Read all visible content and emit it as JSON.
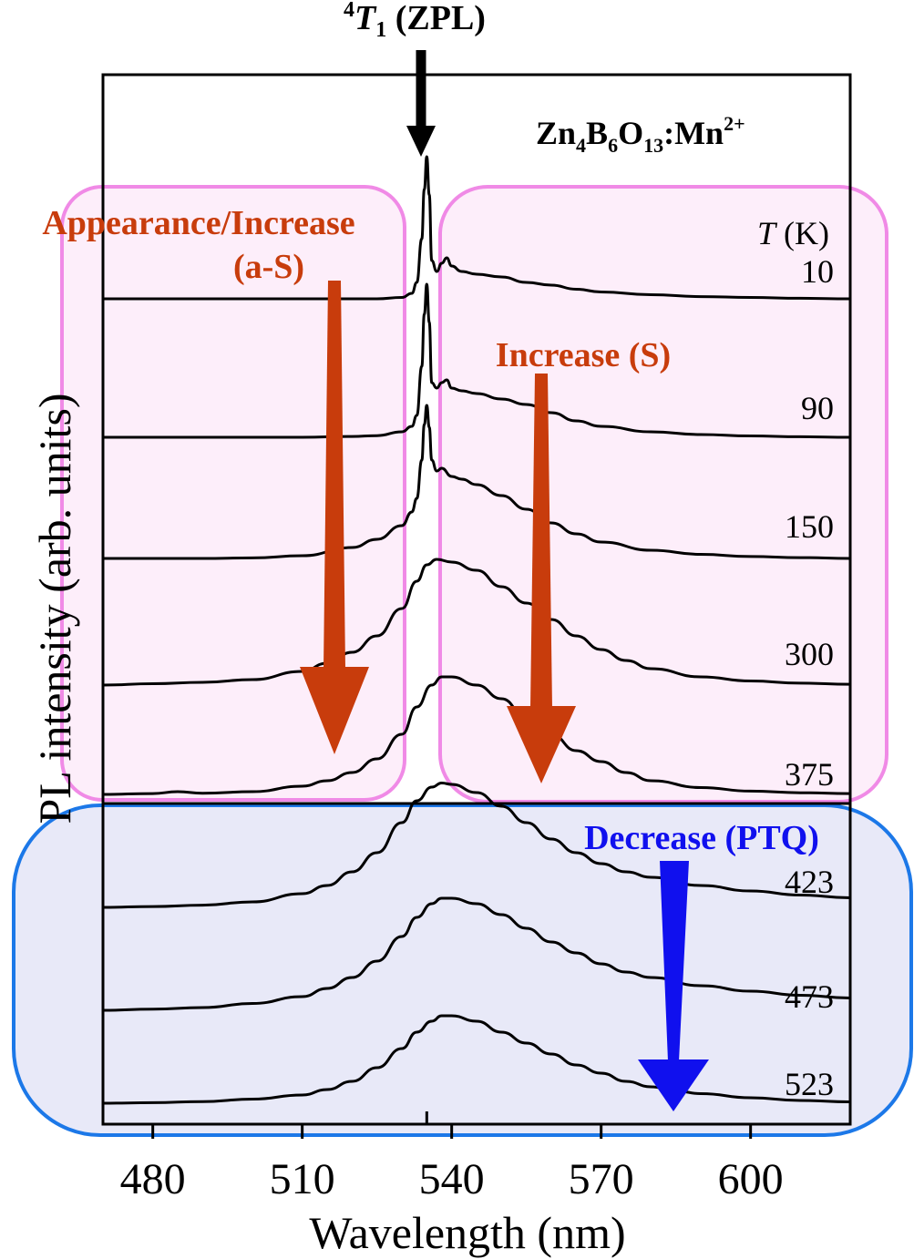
{
  "chart_data": {
    "type": "line",
    "title": "",
    "xlabel": "Wavelength (nm)",
    "ylabel": "PL intensity (arb. units)",
    "xlim": [
      470,
      620
    ],
    "x_ticks": [
      480,
      510,
      540,
      570,
      600
    ],
    "x_tick_labels": [
      "480",
      "510",
      "540",
      "570",
      "600"
    ],
    "sample_label_parts": [
      "Zn",
      "4",
      "B",
      "6",
      "O",
      "13",
      ":Mn",
      "2+"
    ],
    "temperature_header_parts": [
      "T",
      " (K)"
    ],
    "zpl_label_parts": [
      "4",
      "T",
      "1",
      " (ZPL)"
    ],
    "zpl_wavelength": 535,
    "annotations": {
      "as_line1": "Appearance/Increase",
      "as_line2": "(a-S)",
      "s": "Increase (S)",
      "ptq": "Decrease (PTQ)"
    },
    "colors": {
      "as_arrow": "#c83c0c",
      "s_arrow": "#c83c0c",
      "ptq_arrow": "#1010ee",
      "pink_region_fill": "#fdeefa",
      "pink_region_stroke": "#f08ae6",
      "blue_region_fill": "#e8e9f8",
      "blue_region_stroke": "#1c78e8",
      "zpl_arrow": "#000000"
    },
    "series": [
      {
        "name": "10",
        "x": [
          470,
          480,
          490,
          500,
          510,
          520,
          525,
          530,
          532,
          533,
          534,
          534.5,
          535,
          535.5,
          536,
          537,
          538,
          539,
          540,
          542,
          545,
          550,
          555,
          560,
          565,
          570,
          580,
          590,
          600,
          610,
          620
        ],
        "y": [
          0,
          0,
          0,
          0,
          0,
          0,
          0,
          0.005,
          0.02,
          0.06,
          0.22,
          0.4,
          0.52,
          0.38,
          0.14,
          0.1,
          0.13,
          0.15,
          0.12,
          0.1,
          0.09,
          0.08,
          0.06,
          0.05,
          0.035,
          0.025,
          0.015,
          0.008,
          0.005,
          0.002,
          0
        ]
      },
      {
        "name": "90",
        "x": [
          470,
          480,
          490,
          500,
          510,
          520,
          525,
          530,
          532,
          533,
          534,
          534.5,
          535,
          535.5,
          536,
          537,
          538,
          539,
          540,
          542,
          545,
          550,
          555,
          560,
          565,
          570,
          580,
          590,
          600,
          610,
          620
        ],
        "y": [
          0,
          0,
          0,
          0,
          0,
          0.003,
          0.006,
          0.02,
          0.04,
          0.08,
          0.26,
          0.45,
          0.56,
          0.42,
          0.2,
          0.18,
          0.2,
          0.21,
          0.18,
          0.17,
          0.16,
          0.14,
          0.12,
          0.09,
          0.06,
          0.04,
          0.02,
          0.01,
          0.005,
          0.002,
          0
        ]
      },
      {
        "name": "150",
        "x": [
          470,
          480,
          490,
          500,
          510,
          520,
          525,
          530,
          532,
          533,
          534,
          534.5,
          535,
          535.5,
          536,
          537,
          538,
          540,
          542,
          545,
          550,
          555,
          560,
          565,
          570,
          580,
          590,
          600,
          610,
          620
        ],
        "y": [
          0,
          0,
          0,
          0.002,
          0.01,
          0.04,
          0.07,
          0.12,
          0.17,
          0.22,
          0.36,
          0.49,
          0.56,
          0.48,
          0.36,
          0.32,
          0.33,
          0.3,
          0.29,
          0.27,
          0.23,
          0.18,
          0.13,
          0.09,
          0.06,
          0.03,
          0.015,
          0.007,
          0.003,
          0
        ]
      },
      {
        "name": "300",
        "x": [
          470,
          480,
          490,
          500,
          510,
          515,
          520,
          525,
          530,
          533,
          535,
          537,
          540,
          545,
          550,
          555,
          560,
          565,
          570,
          575,
          580,
          590,
          600,
          610,
          620
        ],
        "y": [
          0,
          0.005,
          0.01,
          0.02,
          0.05,
          0.08,
          0.12,
          0.18,
          0.28,
          0.38,
          0.44,
          0.46,
          0.45,
          0.42,
          0.36,
          0.3,
          0.24,
          0.18,
          0.13,
          0.09,
          0.06,
          0.03,
          0.015,
          0.007,
          0.003
        ]
      },
      {
        "name": "375",
        "x": [
          470,
          480,
          485,
          490,
          500,
          510,
          515,
          520,
          525,
          530,
          533,
          536,
          538,
          540,
          545,
          550,
          555,
          560,
          565,
          570,
          575,
          580,
          590,
          600,
          610,
          620
        ],
        "y": [
          0,
          0.003,
          0.01,
          0.004,
          0.01,
          0.03,
          0.05,
          0.08,
          0.13,
          0.22,
          0.32,
          0.4,
          0.43,
          0.43,
          0.4,
          0.35,
          0.28,
          0.22,
          0.16,
          0.12,
          0.08,
          0.05,
          0.025,
          0.012,
          0.006,
          0.003
        ]
      },
      {
        "name": "423",
        "x": [
          470,
          480,
          490,
          500,
          510,
          515,
          520,
          525,
          530,
          533,
          536,
          538,
          540,
          545,
          550,
          555,
          560,
          565,
          570,
          575,
          580,
          590,
          600,
          610,
          620
        ],
        "y": [
          0,
          0.003,
          0.008,
          0.02,
          0.05,
          0.08,
          0.13,
          0.2,
          0.31,
          0.39,
          0.44,
          0.455,
          0.45,
          0.42,
          0.37,
          0.31,
          0.25,
          0.2,
          0.16,
          0.13,
          0.11,
          0.08,
          0.06,
          0.045,
          0.035
        ]
      },
      {
        "name": "473",
        "x": [
          470,
          480,
          490,
          500,
          510,
          515,
          520,
          525,
          530,
          533,
          536,
          538,
          540,
          545,
          550,
          555,
          560,
          565,
          570,
          575,
          580,
          590,
          600,
          610,
          620
        ],
        "y": [
          0,
          0.004,
          0.01,
          0.025,
          0.05,
          0.08,
          0.12,
          0.18,
          0.27,
          0.34,
          0.39,
          0.41,
          0.41,
          0.39,
          0.35,
          0.3,
          0.25,
          0.21,
          0.17,
          0.14,
          0.12,
          0.09,
          0.07,
          0.055,
          0.045
        ]
      },
      {
        "name": "523",
        "x": [
          470,
          480,
          490,
          500,
          510,
          515,
          520,
          525,
          530,
          533,
          536,
          538,
          540,
          545,
          550,
          555,
          560,
          565,
          570,
          575,
          580,
          585,
          590,
          600,
          610,
          620
        ],
        "y": [
          0,
          0.002,
          0.006,
          0.015,
          0.03,
          0.05,
          0.08,
          0.13,
          0.2,
          0.26,
          0.3,
          0.32,
          0.32,
          0.3,
          0.26,
          0.22,
          0.18,
          0.14,
          0.11,
          0.08,
          0.06,
          0.045,
          0.035,
          0.02,
          0.01,
          0.005
        ]
      }
    ]
  }
}
